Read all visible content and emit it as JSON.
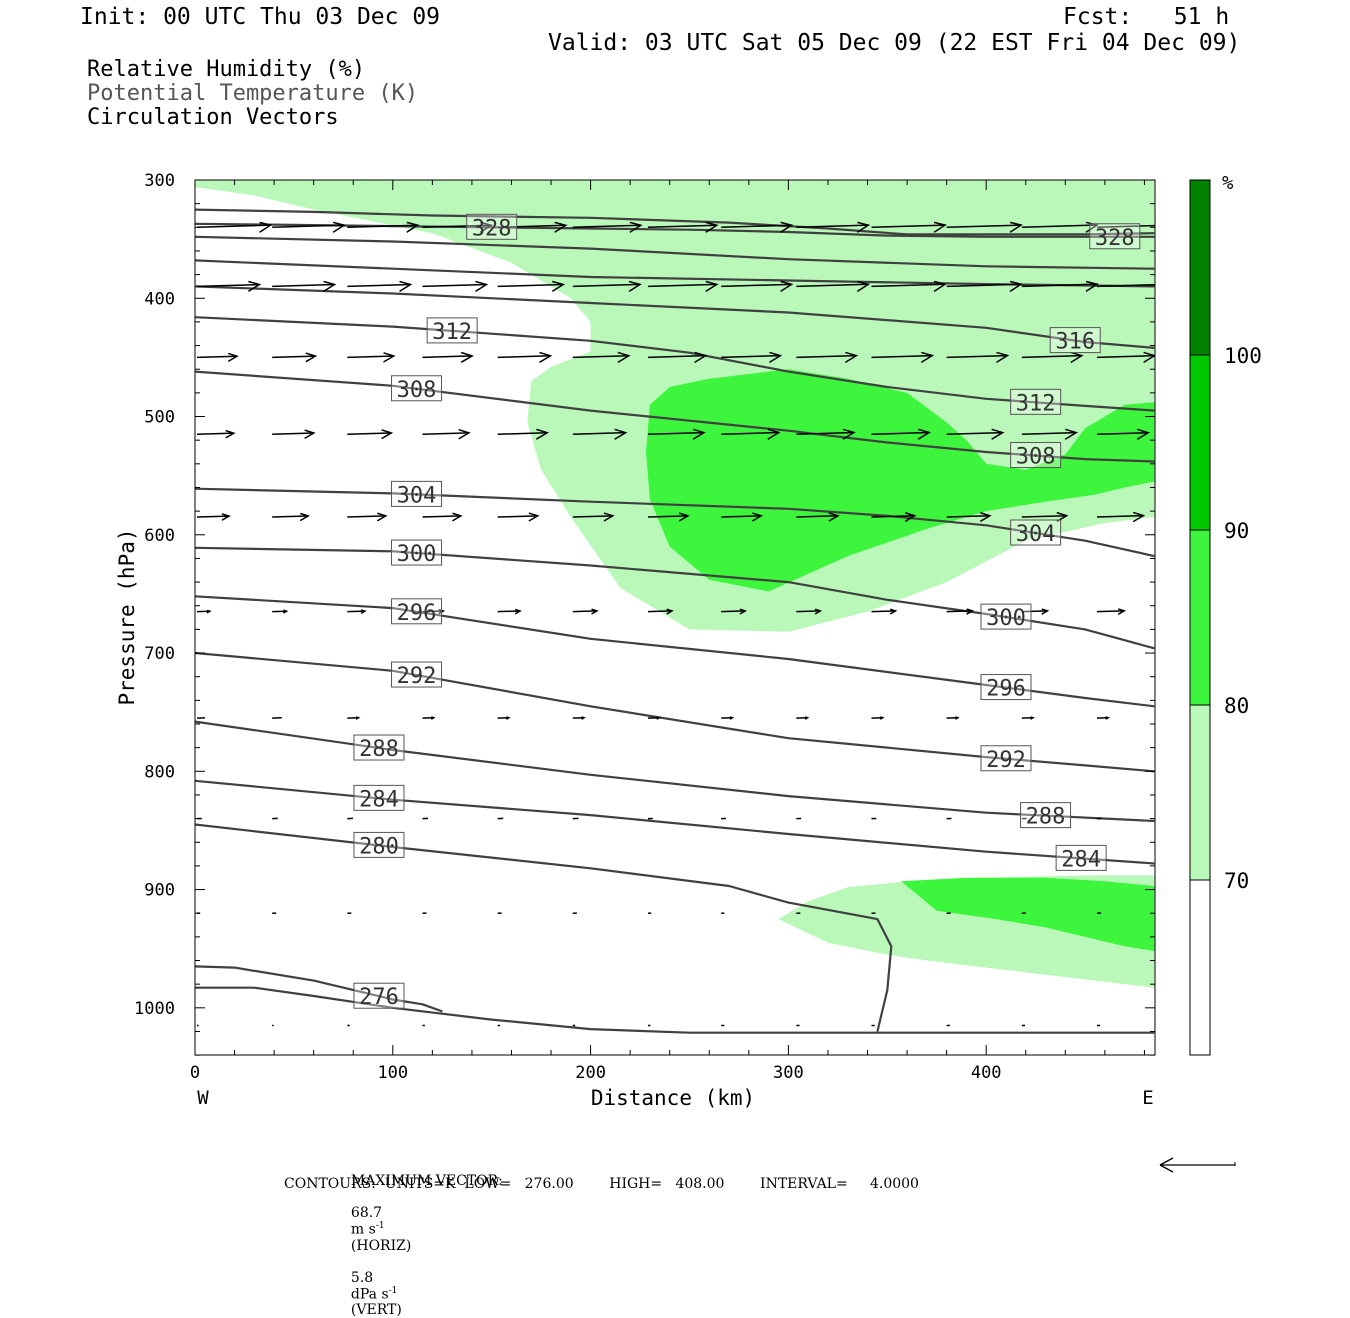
{
  "header": {
    "init": "Init: 00 UTC Thu 03 Dec 09",
    "fcst": "Fcst:   51 h",
    "valid": "Valid: 03 UTC Sat 05 Dec 09 (22 EST Fri 04 Dec 09)"
  },
  "fields": {
    "rh": "Relative Humidity (%)",
    "theta": "Potential Temperature (K)",
    "vectors": "Circulation Vectors"
  },
  "footer": {
    "maxvec_label": "MAXIMUM VECTOR:",
    "maxvec_horiz_value": "68.7",
    "maxvec_horiz_unit": "m s",
    "maxvec_horiz_exp": "-1",
    "maxvec_horiz_tag": "(HORIZ)",
    "maxvec_vert_value": "5.8",
    "maxvec_vert_unit": "dPa s",
    "maxvec_vert_exp": "-1",
    "maxvec_vert_tag": "(VERT)",
    "contours": "CONTOURS:  UNITS=K  LOW=   276.00        HIGH=   408.00        INTERVAL=     4.0000"
  },
  "chart_data": {
    "type": "contour cross-section",
    "xlabel": "Distance (km)",
    "ylabel": "Pressure (hPa)",
    "x_ticks": [
      0,
      100,
      200,
      300,
      400
    ],
    "y_ticks": [
      300,
      400,
      500,
      600,
      700,
      800,
      900,
      1000
    ],
    "xlim": [
      0,
      485
    ],
    "ylim": [
      300,
      1040
    ],
    "x_end_labels": {
      "left": "W",
      "right": "E"
    },
    "colorbar": {
      "unit": "%",
      "levels": [
        70,
        80,
        90,
        100
      ],
      "colors": [
        "#ffffff",
        "#b9f8b9",
        "#3df53d",
        "#00c800",
        "#008200"
      ]
    },
    "rh_regions": [
      {
        "class": "70-80",
        "color": "#b9f8b9",
        "points": [
          [
            0,
            306
          ],
          [
            30,
            313
          ],
          [
            60,
            325
          ],
          [
            90,
            335
          ],
          [
            120,
            345
          ],
          [
            160,
            370
          ],
          [
            190,
            400
          ],
          [
            200,
            420
          ],
          [
            200,
            445
          ],
          [
            180,
            458
          ],
          [
            170,
            470
          ],
          [
            168,
            505
          ],
          [
            175,
            545
          ],
          [
            190,
            585
          ],
          [
            215,
            645
          ],
          [
            250,
            680
          ],
          [
            300,
            682
          ],
          [
            340,
            665
          ],
          [
            380,
            640
          ],
          [
            420,
            605
          ],
          [
            460,
            590
          ],
          [
            485,
            585
          ],
          [
            485,
            300
          ],
          [
            0,
            300
          ]
        ]
      },
      {
        "class": "80-90",
        "color": "#3df53d",
        "points": [
          [
            230,
            490
          ],
          [
            240,
            475
          ],
          [
            260,
            468
          ],
          [
            300,
            460
          ],
          [
            330,
            468
          ],
          [
            360,
            480
          ],
          [
            380,
            505
          ],
          [
            390,
            520
          ],
          [
            400,
            540
          ],
          [
            420,
            545
          ],
          [
            440,
            532
          ],
          [
            450,
            510
          ],
          [
            470,
            490
          ],
          [
            485,
            488
          ],
          [
            485,
            555
          ],
          [
            470,
            560
          ],
          [
            455,
            566
          ],
          [
            430,
            572
          ],
          [
            400,
            580
          ],
          [
            370,
            595
          ],
          [
            330,
            618
          ],
          [
            290,
            648
          ],
          [
            260,
            638
          ],
          [
            240,
            610
          ],
          [
            230,
            570
          ],
          [
            228,
            530
          ]
        ]
      },
      {
        "class": "70-80",
        "color": "#b9f8b9",
        "points": [
          [
            295,
            925
          ],
          [
            310,
            910
          ],
          [
            330,
            898
          ],
          [
            360,
            893
          ],
          [
            400,
            890
          ],
          [
            450,
            888
          ],
          [
            485,
            888
          ],
          [
            485,
            983
          ],
          [
            460,
            978
          ],
          [
            430,
            972
          ],
          [
            400,
            966
          ],
          [
            370,
            960
          ],
          [
            350,
            955
          ],
          [
            320,
            945
          ]
        ]
      },
      {
        "class": "80-90",
        "color": "#3df53d",
        "points": [
          [
            357,
            893
          ],
          [
            390,
            890
          ],
          [
            430,
            890
          ],
          [
            460,
            893
          ],
          [
            485,
            897
          ],
          [
            485,
            952
          ],
          [
            470,
            948
          ],
          [
            450,
            940
          ],
          [
            430,
            932
          ],
          [
            405,
            925
          ],
          [
            375,
            918
          ]
        ]
      }
    ],
    "theta_contours": [
      {
        "level": 328,
        "label": "328",
        "label_x": [
          150,
          465
        ],
        "points": [
          [
            0,
            337
          ],
          [
            50,
            338
          ],
          [
            100,
            339
          ],
          [
            150,
            340
          ],
          [
            200,
            341
          ],
          [
            250,
            342
          ],
          [
            300,
            344
          ],
          [
            350,
            347
          ],
          [
            400,
            348
          ],
          [
            450,
            348
          ],
          [
            485,
            348
          ]
        ]
      },
      {
        "level": 328,
        "label": "",
        "label_x": [],
        "points": [
          [
            0,
            325
          ],
          [
            60,
            327
          ],
          [
            120,
            330
          ],
          [
            200,
            332
          ],
          [
            270,
            336
          ],
          [
            320,
            341
          ],
          [
            360,
            346
          ],
          [
            400,
            346
          ],
          [
            450,
            346
          ],
          [
            485,
            345
          ]
        ]
      },
      {
        "level": 324,
        "label": "",
        "label_x": [],
        "points": [
          [
            0,
            348
          ],
          [
            100,
            352
          ],
          [
            200,
            358
          ],
          [
            300,
            367
          ],
          [
            400,
            373
          ],
          [
            485,
            375
          ]
        ]
      },
      {
        "level": 320,
        "label": "",
        "label_x": [],
        "points": [
          [
            0,
            368
          ],
          [
            100,
            375
          ],
          [
            200,
            382
          ],
          [
            300,
            385
          ],
          [
            400,
            388
          ],
          [
            485,
            390
          ]
        ]
      },
      {
        "level": 316,
        "label": "316",
        "label_x": [
          445
        ],
        "points": [
          [
            0,
            390
          ],
          [
            100,
            396
          ],
          [
            200,
            404
          ],
          [
            300,
            412
          ],
          [
            400,
            425
          ],
          [
            450,
            437
          ],
          [
            485,
            442
          ]
        ]
      },
      {
        "level": 312,
        "label": "312",
        "label_x": [
          130,
          425
        ],
        "points": [
          [
            0,
            416
          ],
          [
            100,
            424
          ],
          [
            200,
            436
          ],
          [
            250,
            446
          ],
          [
            300,
            462
          ],
          [
            350,
            475
          ],
          [
            400,
            485
          ],
          [
            450,
            491
          ],
          [
            485,
            495
          ]
        ]
      },
      {
        "level": 308,
        "label": "308",
        "label_x": [
          112,
          425
        ],
        "points": [
          [
            0,
            462
          ],
          [
            100,
            474
          ],
          [
            200,
            495
          ],
          [
            300,
            512
          ],
          [
            350,
            522
          ],
          [
            400,
            530
          ],
          [
            450,
            536
          ],
          [
            485,
            538
          ]
        ]
      },
      {
        "level": 304,
        "label": "304",
        "label_x": [
          112,
          425
        ],
        "points": [
          [
            0,
            561
          ],
          [
            100,
            565
          ],
          [
            200,
            572
          ],
          [
            300,
            578
          ],
          [
            350,
            584
          ],
          [
            400,
            592
          ],
          [
            450,
            605
          ],
          [
            485,
            618
          ]
        ]
      },
      {
        "level": 300,
        "label": "300",
        "label_x": [
          112,
          410
        ],
        "points": [
          [
            0,
            611
          ],
          [
            100,
            614
          ],
          [
            200,
            626
          ],
          [
            300,
            640
          ],
          [
            350,
            655
          ],
          [
            400,
            667
          ],
          [
            450,
            680
          ],
          [
            485,
            696
          ]
        ]
      },
      {
        "level": 296,
        "label": "296",
        "label_x": [
          112,
          410
        ],
        "points": [
          [
            0,
            652
          ],
          [
            100,
            662
          ],
          [
            200,
            688
          ],
          [
            300,
            705
          ],
          [
            400,
            727
          ],
          [
            450,
            738
          ],
          [
            485,
            745
          ]
        ]
      },
      {
        "level": 292,
        "label": "292",
        "label_x": [
          112,
          410
        ],
        "points": [
          [
            0,
            700
          ],
          [
            100,
            715
          ],
          [
            200,
            745
          ],
          [
            300,
            772
          ],
          [
            400,
            788
          ],
          [
            450,
            795
          ],
          [
            485,
            800
          ]
        ]
      },
      {
        "level": 288,
        "label": "288",
        "label_x": [
          93,
          430
        ],
        "points": [
          [
            0,
            758
          ],
          [
            100,
            782
          ],
          [
            200,
            803
          ],
          [
            300,
            821
          ],
          [
            400,
            835
          ],
          [
            485,
            842
          ]
        ]
      },
      {
        "level": 284,
        "label": "284",
        "label_x": [
          93,
          448
        ],
        "points": [
          [
            0,
            808
          ],
          [
            100,
            824
          ],
          [
            200,
            837
          ],
          [
            300,
            853
          ],
          [
            400,
            868
          ],
          [
            485,
            878
          ]
        ]
      },
      {
        "level": 280,
        "label": "280",
        "label_x": [
          93
        ],
        "points": [
          [
            0,
            845
          ],
          [
            100,
            864
          ],
          [
            200,
            882
          ],
          [
            270,
            897
          ],
          [
            300,
            911
          ],
          [
            345,
            925
          ],
          [
            352,
            948
          ],
          [
            350,
            985
          ],
          [
            345,
            1020
          ]
        ]
      },
      {
        "level": 276,
        "label": "276",
        "label_x": [
          93
        ],
        "points": [
          [
            0,
            965
          ],
          [
            20,
            966
          ],
          [
            60,
            977
          ],
          [
            100,
            993
          ],
          [
            115,
            997
          ],
          [
            125,
            1003
          ]
        ]
      },
      {
        "level": 276,
        "label": "",
        "label_x": [],
        "points": [
          [
            0,
            983
          ],
          [
            30,
            983
          ],
          [
            60,
            990
          ],
          [
            100,
            1000
          ],
          [
            150,
            1010
          ],
          [
            200,
            1018
          ],
          [
            250,
            1021
          ],
          [
            300,
            1021
          ],
          [
            350,
            1021
          ],
          [
            400,
            1021
          ],
          [
            485,
            1021
          ]
        ]
      }
    ],
    "vectors": {
      "x": [
        0,
        38,
        76,
        114,
        152,
        190,
        228,
        265,
        303,
        341,
        379,
        417,
        455
      ],
      "rows": [
        {
          "p": 340,
          "u": [
            0.92,
            0.9,
            0.88,
            0.86,
            0.85,
            0.85,
            0.86,
            0.88,
            0.9,
            0.92,
            0.93,
            0.94,
            0.95
          ]
        },
        {
          "p": 390,
          "u": [
            0.78,
            0.78,
            0.79,
            0.8,
            0.82,
            0.84,
            0.86,
            0.88,
            0.9,
            0.92,
            0.93,
            0.94,
            0.95
          ]
        },
        {
          "p": 450,
          "u": [
            0.5,
            0.54,
            0.58,
            0.62,
            0.66,
            0.7,
            0.72,
            0.74,
            0.75,
            0.76,
            0.76,
            0.75,
            0.72
          ]
        },
        {
          "p": 515,
          "u": [
            0.46,
            0.52,
            0.55,
            0.58,
            0.62,
            0.66,
            0.7,
            0.72,
            0.72,
            0.72,
            0.7,
            0.68,
            0.64
          ]
        },
        {
          "p": 585,
          "u": [
            0.4,
            0.45,
            0.48,
            0.48,
            0.5,
            0.5,
            0.5,
            0.5,
            0.52,
            0.54,
            0.54,
            0.56,
            0.58
          ]
        },
        {
          "p": 665,
          "u": [
            0.16,
            0.18,
            0.22,
            0.26,
            0.28,
            0.3,
            0.3,
            0.3,
            0.3,
            0.3,
            0.32,
            0.32,
            0.34
          ]
        },
        {
          "p": 755,
          "u": [
            0.1,
            0.12,
            0.14,
            0.14,
            0.14,
            0.14,
            0.14,
            0.14,
            0.14,
            0.14,
            0.14,
            0.14,
            0.14
          ]
        },
        {
          "p": 840,
          "u": [
            0.06,
            0.07,
            0.07,
            0.07,
            0.07,
            0.07,
            0.06,
            0.06,
            0.06,
            0.06,
            0.06,
            0.06,
            0.06
          ]
        },
        {
          "p": 920,
          "u": [
            0.04,
            0.05,
            0.05,
            0.05,
            0.05,
            0.05,
            0.04,
            0.04,
            0.05,
            0.05,
            0.05,
            0.05,
            0.05
          ]
        },
        {
          "p": 1015,
          "u": [
            0.02,
            0.02,
            0.03,
            0.03,
            0.03,
            0.03,
            0.03,
            0.04,
            0.04,
            0.04,
            0.04,
            0.04,
            0.04
          ]
        }
      ]
    }
  }
}
